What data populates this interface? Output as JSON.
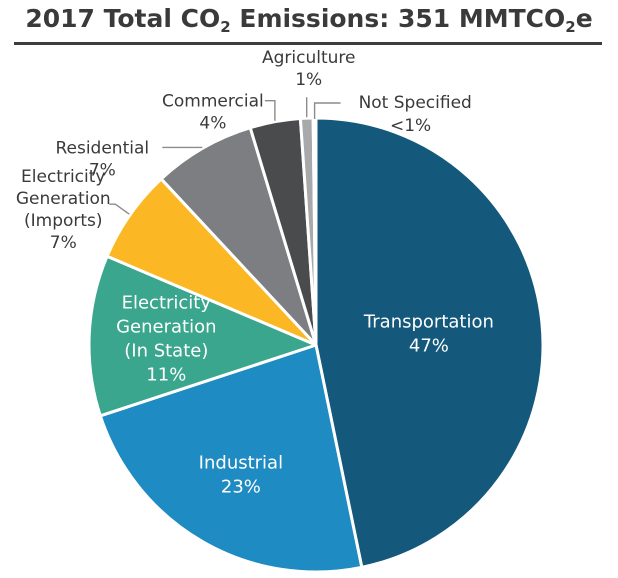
{
  "title": {
    "main": "2017 Total CO",
    "sub1": "2",
    "mid": " Emissions: 351 MMTCO",
    "sub2": "2",
    "end": "e"
  },
  "chart_data": {
    "type": "pie",
    "title": "2017 Total CO2 Emissions: 351 MMTCO2e",
    "slices": [
      {
        "name": "Transportation",
        "label_lines": [
          "Transportation"
        ],
        "pct_label": "47%",
        "value": 47.0,
        "color": "#14587b",
        "text_color": "#ffffff"
      },
      {
        "name": "Industrial",
        "label_lines": [
          "Industrial"
        ],
        "pct_label": "23%",
        "value": 23.3,
        "color": "#1e8bc3",
        "text_color": "#ffffff"
      },
      {
        "name": "Electricity Generation (In State)",
        "label_lines": [
          "Electricity",
          "Generation",
          "(In State)"
        ],
        "pct_label": "11%",
        "value": 11.5,
        "color": "#3aa68d",
        "text_color": "#ffffff"
      },
      {
        "name": "Electricity Generation (Imports)",
        "label_lines": [
          "Electricity",
          "Generation",
          "(Imports)"
        ],
        "pct_label": "7%",
        "value": 6.7,
        "color": "#fbb824",
        "text_color": "#3a3a3a"
      },
      {
        "name": "Residential",
        "label_lines": [
          "Residential"
        ],
        "pct_label": "7%",
        "value": 7.3,
        "color": "#7d7e81",
        "text_color": "#3a3a3a"
      },
      {
        "name": "Commercial",
        "label_lines": [
          "Commercial"
        ],
        "pct_label": "4%",
        "value": 3.6,
        "color": "#4a4b4d",
        "text_color": "#3a3a3a"
      },
      {
        "name": "Agriculture",
        "label_lines": [
          "Agriculture"
        ],
        "pct_label": "1%",
        "value": 0.9,
        "color": "#a7a9ab",
        "text_color": "#3a3a3a"
      },
      {
        "name": "Not Specified",
        "label_lines": [
          "Not Specified"
        ],
        "pct_label": "<1%",
        "value": 0.2,
        "color": "#c9cbcd",
        "text_color": "#3a3a3a"
      }
    ]
  }
}
